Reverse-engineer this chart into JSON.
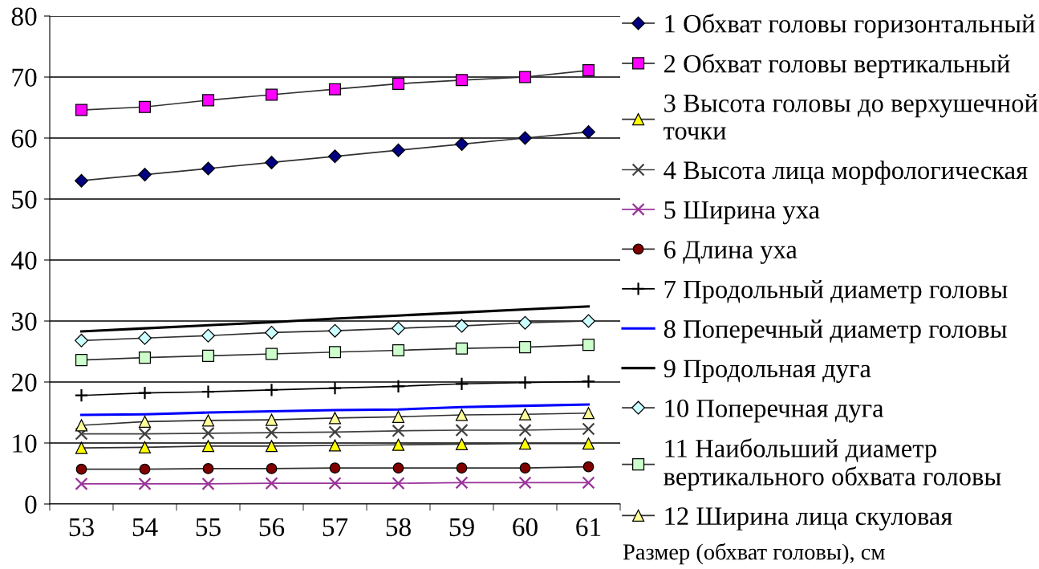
{
  "chart_data": {
    "type": "line",
    "categories": [
      "53",
      "54",
      "55",
      "56",
      "57",
      "58",
      "59",
      "60",
      "61"
    ],
    "xlabel": "Размер (обхват головы), см",
    "ylim": [
      0,
      80
    ],
    "yticks": [
      0,
      10,
      20,
      30,
      40,
      50,
      60,
      70,
      80
    ],
    "grid": "y",
    "legend": "right",
    "line_style": "solid",
    "series": [
      {
        "name": "1 Обхват головы горизонтальный",
        "color": "#000080",
        "marker": "diamond",
        "values": [
          53,
          54,
          55,
          56,
          57,
          58,
          59,
          60,
          61
        ]
      },
      {
        "name": "2 Обхват головы вертикальный",
        "color": "#ff00ff",
        "marker": "square",
        "values": [
          64.6,
          65.1,
          66.2,
          67.1,
          68.0,
          68.9,
          69.5,
          70.0,
          71.1
        ]
      },
      {
        "name": "3 Высота головы до верхушечной\nточки",
        "color": "#ffff00",
        "marker": "triangle",
        "values": [
          9.2,
          9.3,
          9.5,
          9.5,
          9.6,
          9.7,
          9.8,
          9.9,
          9.9
        ]
      },
      {
        "name": "4 Высота лица морфологическая",
        "color": "#404040",
        "marker": "cross",
        "values": [
          11.5,
          11.5,
          11.6,
          11.7,
          11.8,
          12.0,
          12.1,
          12.1,
          12.3
        ]
      },
      {
        "name": "5 Ширина уха",
        "color": "#993399",
        "marker": "cross",
        "values": [
          3.3,
          3.3,
          3.3,
          3.4,
          3.4,
          3.4,
          3.5,
          3.5,
          3.5
        ]
      },
      {
        "name": "6 Длина уха",
        "color": "#800000",
        "marker": "circle",
        "values": [
          5.7,
          5.7,
          5.8,
          5.8,
          5.9,
          5.9,
          5.9,
          5.9,
          6.1
        ]
      },
      {
        "name": "7 Продольный диаметр головы",
        "color": "#000000",
        "marker": "plus",
        "values": [
          17.8,
          18.2,
          18.4,
          18.7,
          19.0,
          19.3,
          19.7,
          19.9,
          20.1
        ]
      },
      {
        "name": "8 Поперечный диаметр головы",
        "color": "#0000ff",
        "marker": "none",
        "values": [
          14.6,
          14.7,
          15.0,
          15.2,
          15.4,
          15.5,
          15.9,
          16.1,
          16.3
        ]
      },
      {
        "name": "9 Продольная дуга",
        "color": "#000000",
        "marker": "none",
        "values": [
          28.3,
          28.8,
          29.3,
          29.8,
          30.4,
          30.9,
          31.4,
          31.9,
          32.4
        ]
      },
      {
        "name": "10 Поперечная дуга",
        "color": "#ccffff",
        "marker": "diamond",
        "values": [
          26.8,
          27.2,
          27.6,
          28.1,
          28.4,
          28.8,
          29.2,
          29.7,
          30.0
        ]
      },
      {
        "name": "11 Наибольший диаметр\nвертикального обхвата головы",
        "color": "#ccffcc",
        "marker": "square",
        "values": [
          23.6,
          24.0,
          24.3,
          24.6,
          24.9,
          25.2,
          25.5,
          25.7,
          26.1
        ]
      },
      {
        "name": "12 Ширина лица скуловая",
        "color": "#ffff99",
        "marker": "triangle",
        "values": [
          12.9,
          13.5,
          13.7,
          13.8,
          14.1,
          14.3,
          14.6,
          14.7,
          14.9
        ]
      }
    ]
  }
}
